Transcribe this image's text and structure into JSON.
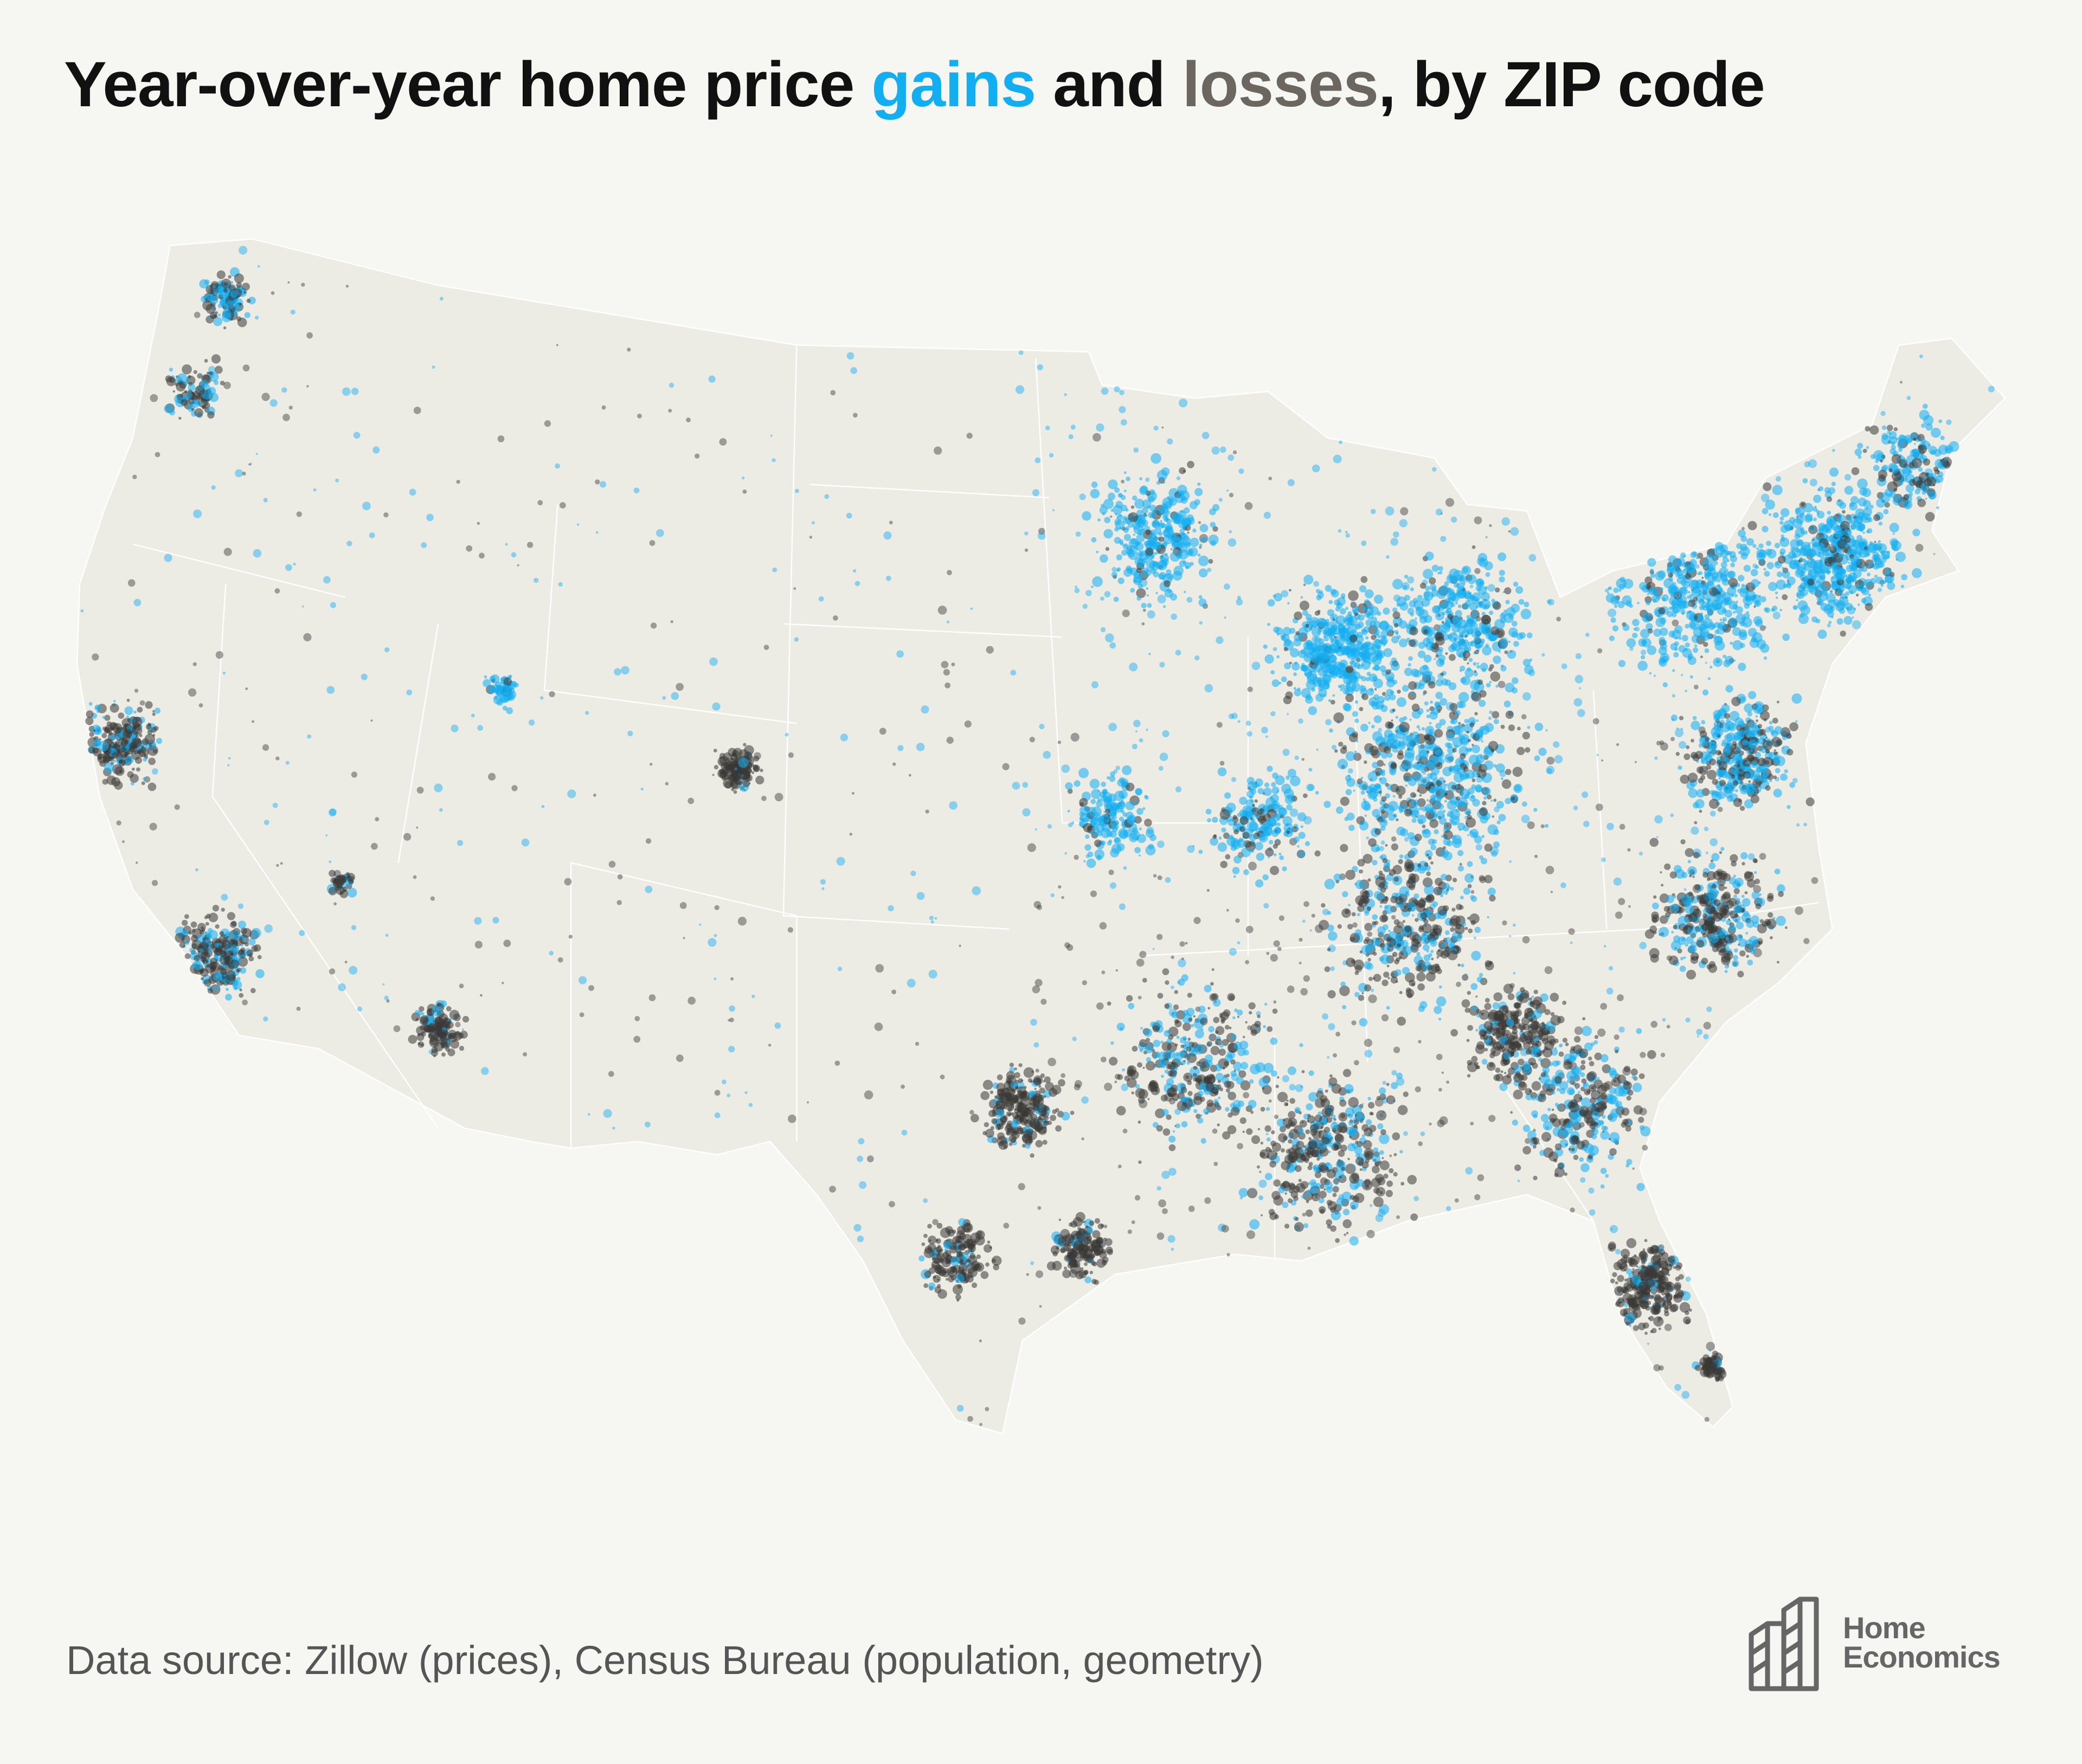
{
  "title": {
    "part1": "Year-over-year home price ",
    "gains": "gains",
    "part2": " and ",
    "losses": "losses",
    "part3": ", by ZIP code"
  },
  "colors": {
    "gains": "#12aef2",
    "losses": "#3a3836",
    "land": "#ecece5",
    "background": "#f6f6f2"
  },
  "footer": {
    "source": "Data source: Zillow (prices), Census Bureau (population, geometry)"
  },
  "logo": {
    "line1": "Home",
    "line2": "Economics"
  }
}
